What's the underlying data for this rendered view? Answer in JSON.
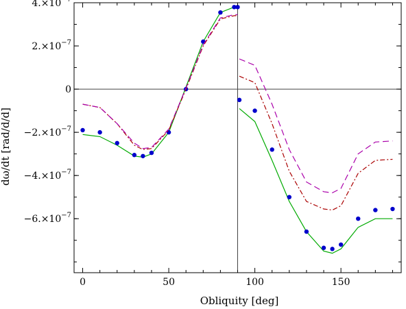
{
  "chart_data": {
    "type": "line",
    "xlabel": "Obliquity [deg]",
    "ylabel": "dω/dt [rad/d/d]",
    "xlim": [
      -5,
      185
    ],
    "ylim": [
      -8.5e-07,
      4e-07
    ],
    "grid": false,
    "x_ticks": [
      {
        "value": 0,
        "label": "0"
      },
      {
        "value": 50,
        "label": "50"
      },
      {
        "value": 100,
        "label": "100"
      },
      {
        "value": 150,
        "label": "150"
      }
    ],
    "y_ticks": [
      {
        "value": 4e-07,
        "label": "4.×10",
        "exp": "−7"
      },
      {
        "value": 2e-07,
        "label": "2.×10",
        "exp": "−7"
      },
      {
        "value": 0,
        "label": "0",
        "exp": ""
      },
      {
        "value": -2e-07,
        "label": "−2.×10",
        "exp": "−7"
      },
      {
        "value": -4e-07,
        "label": "−4.×10",
        "exp": "−7"
      },
      {
        "value": -6e-07,
        "label": "−6.×10",
        "exp": "−7"
      }
    ],
    "reference_lines": {
      "x": 90,
      "y": 0
    },
    "series": [
      {
        "color": "#00aa00",
        "style": "solid",
        "x": [
          0,
          10,
          20,
          30,
          35,
          40,
          50,
          60,
          70,
          80,
          88,
          90,
          91,
          100,
          110,
          120,
          130,
          140,
          145,
          150,
          160,
          170,
          180
        ],
        "y": [
          -2.1e-07,
          -2.2e-07,
          -2.6e-07,
          -3.1e-07,
          -3.15e-07,
          -3e-07,
          -2e-07,
          1e-08,
          2.2e-07,
          3.55e-07,
          3.8e-07,
          3.8e-07,
          -9e-08,
          -1.5e-07,
          -3.3e-07,
          -5.2e-07,
          -6.6e-07,
          -7.5e-07,
          -7.6e-07,
          -7.4e-07,
          -6.4e-07,
          -6e-07,
          -6e-07
        ]
      },
      {
        "color": "#0000cc",
        "style": "dots",
        "x": [
          0,
          10,
          20,
          30,
          35,
          40,
          50,
          60,
          70,
          80,
          88,
          90,
          91,
          100,
          110,
          120,
          130,
          140,
          145,
          150,
          160,
          170,
          180
        ],
        "y": [
          -1.9e-07,
          -2e-07,
          -2.5e-07,
          -3.05e-07,
          -3.1e-07,
          -2.95e-07,
          -2e-07,
          0.0,
          2.2e-07,
          3.55e-07,
          3.8e-07,
          3.8e-07,
          -5e-08,
          -1e-07,
          -2.8e-07,
          -5e-07,
          -6.6e-07,
          -7.35e-07,
          -7.4e-07,
          -7.2e-07,
          -6e-07,
          -5.6e-07,
          -5.55e-07
        ]
      },
      {
        "color": "#aa0000",
        "style": "dashdot",
        "x": [
          0,
          10,
          20,
          30,
          35,
          40,
          50,
          60,
          70,
          80,
          88,
          90,
          91,
          100,
          110,
          120,
          130,
          140,
          145,
          150,
          160,
          170,
          180
        ],
        "y": [
          -7e-08,
          -8.5e-08,
          -1.6e-07,
          -2.6e-07,
          -2.8e-07,
          -2.75e-07,
          -1.9e-07,
          0.0,
          2e-07,
          3.25e-07,
          3.4e-07,
          3.4e-07,
          6e-08,
          3e-08,
          -1.6e-07,
          -3.8e-07,
          -5.2e-07,
          -5.55e-07,
          -5.6e-07,
          -5.4e-07,
          -3.9e-07,
          -3.3e-07,
          -3.25e-07
        ]
      },
      {
        "color": "#aa00aa",
        "style": "dashed",
        "x": [
          0,
          10,
          20,
          30,
          35,
          40,
          50,
          60,
          70,
          80,
          88,
          90,
          91,
          100,
          110,
          120,
          130,
          140,
          145,
          150,
          160,
          170,
          180
        ],
        "y": [
          -7e-08,
          -8.5e-08,
          -1.6e-07,
          -2.5e-07,
          -2.75e-07,
          -2.7e-07,
          -1.85e-07,
          5e-09,
          2.05e-07,
          3.3e-07,
          3.45e-07,
          3.45e-07,
          1.4e-07,
          1.1e-07,
          -7e-08,
          -2.8e-07,
          -4.3e-07,
          -4.75e-07,
          -4.8e-07,
          -4.6e-07,
          -3e-07,
          -2.45e-07,
          -2.4e-07
        ]
      }
    ]
  }
}
